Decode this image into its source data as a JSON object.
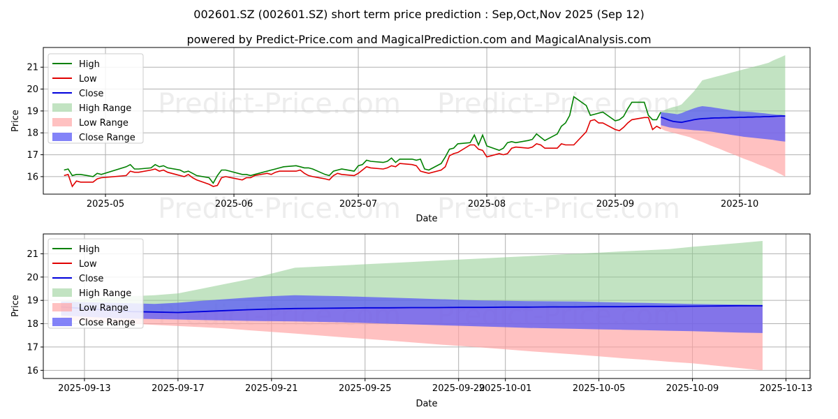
{
  "title": "002601.SZ (002601.SZ) short term price prediction : Sep,Oct,Nov 2025 (Sep 12)",
  "subtitle": "powered by Predict-Price.com and MagicalPrediction.com and MagicalAnalysis.com",
  "watermark": "Predict-Price.com",
  "colors": {
    "high": "#008000",
    "low": "#e00000",
    "close": "#0000dd",
    "high_range": "#8fcc8f",
    "low_range": "#ff9f9f",
    "close_range": "#5a5af5"
  },
  "chart_data": [
    {
      "type": "line",
      "xlabel": "Date",
      "ylabel": "Price",
      "ylim": [
        15.2,
        21.9
      ],
      "grid": true,
      "legend_position": "top-left",
      "x_ticks": [
        "2025-05",
        "2025-06",
        "2025-07",
        "2025-08",
        "2025-09",
        "2025-10"
      ],
      "y_ticks": [
        16,
        17,
        18,
        19,
        20,
        21
      ],
      "legend": [
        "High",
        "Low",
        "Close",
        "High Range",
        "Low Range",
        "Close Range"
      ],
      "history": {
        "x": [
          "2025-04-21",
          "2025-04-22",
          "2025-04-23",
          "2025-04-24",
          "2025-04-25",
          "2025-04-28",
          "2025-04-29",
          "2025-04-30",
          "2025-05-06",
          "2025-05-07",
          "2025-05-08",
          "2025-05-09",
          "2025-05-12",
          "2025-05-13",
          "2025-05-14",
          "2025-05-15",
          "2025-05-16",
          "2025-05-19",
          "2025-05-20",
          "2025-05-21",
          "2025-05-22",
          "2025-05-23",
          "2025-05-26",
          "2025-05-27",
          "2025-05-28",
          "2025-05-29",
          "2025-05-30",
          "2025-06-03",
          "2025-06-04",
          "2025-06-05",
          "2025-06-06",
          "2025-06-09",
          "2025-06-10",
          "2025-06-11",
          "2025-06-12",
          "2025-06-13",
          "2025-06-16",
          "2025-06-17",
          "2025-06-18",
          "2025-06-19",
          "2025-06-20",
          "2025-06-23",
          "2025-06-24",
          "2025-06-25",
          "2025-06-26",
          "2025-06-27",
          "2025-06-30",
          "2025-07-01",
          "2025-07-02",
          "2025-07-03",
          "2025-07-04",
          "2025-07-07",
          "2025-07-08",
          "2025-07-09",
          "2025-07-10",
          "2025-07-11",
          "2025-07-14",
          "2025-07-15",
          "2025-07-16",
          "2025-07-17",
          "2025-07-18",
          "2025-07-21",
          "2025-07-22",
          "2025-07-23",
          "2025-07-24",
          "2025-07-25",
          "2025-07-28",
          "2025-07-29",
          "2025-07-30",
          "2025-07-31",
          "2025-08-01",
          "2025-08-04",
          "2025-08-05",
          "2025-08-06",
          "2025-08-07",
          "2025-08-08",
          "2025-08-11",
          "2025-08-12",
          "2025-08-13",
          "2025-08-14",
          "2025-08-15",
          "2025-08-18",
          "2025-08-19",
          "2025-08-20",
          "2025-08-21",
          "2025-08-22",
          "2025-08-25",
          "2025-08-26",
          "2025-08-27",
          "2025-08-28",
          "2025-08-29",
          "2025-09-01",
          "2025-09-02",
          "2025-09-03",
          "2025-09-04",
          "2025-09-05",
          "2025-09-08",
          "2025-09-09",
          "2025-09-10",
          "2025-09-11",
          "2025-09-12"
        ],
        "high": [
          16.3,
          16.35,
          16.05,
          16.1,
          16.1,
          16.0,
          16.15,
          16.1,
          16.45,
          16.55,
          16.35,
          16.35,
          16.4,
          16.55,
          16.45,
          16.5,
          16.4,
          16.3,
          16.2,
          16.25,
          16.15,
          16.05,
          15.95,
          15.7,
          16.05,
          16.3,
          16.3,
          16.1,
          16.1,
          16.05,
          16.1,
          16.25,
          16.3,
          16.35,
          16.4,
          16.45,
          16.5,
          16.45,
          16.4,
          16.4,
          16.35,
          16.1,
          16.05,
          16.25,
          16.3,
          16.35,
          16.25,
          16.5,
          16.55,
          16.75,
          16.7,
          16.65,
          16.7,
          16.85,
          16.65,
          16.8,
          16.8,
          16.75,
          16.8,
          16.35,
          16.3,
          16.6,
          16.9,
          17.25,
          17.3,
          17.5,
          17.55,
          17.9,
          17.45,
          17.9,
          17.4,
          17.2,
          17.3,
          17.55,
          17.6,
          17.55,
          17.65,
          17.7,
          17.95,
          17.8,
          17.65,
          17.95,
          18.3,
          18.45,
          18.8,
          19.65,
          19.25,
          18.8,
          18.85,
          18.9,
          18.95,
          18.55,
          18.6,
          18.75,
          19.1,
          19.4,
          19.4,
          18.8,
          18.6,
          18.6,
          18.95
        ],
        "low": [
          16.05,
          16.1,
          15.55,
          15.8,
          15.75,
          15.75,
          15.9,
          15.95,
          16.05,
          16.25,
          16.2,
          16.2,
          16.3,
          16.35,
          16.25,
          16.3,
          16.2,
          16.05,
          16.0,
          16.1,
          15.95,
          15.85,
          15.65,
          15.55,
          15.6,
          15.95,
          16.0,
          15.85,
          15.95,
          15.95,
          16.05,
          16.15,
          16.1,
          16.2,
          16.25,
          16.25,
          16.25,
          16.3,
          16.15,
          16.05,
          16.0,
          15.9,
          15.85,
          16.05,
          16.15,
          16.1,
          16.05,
          16.15,
          16.3,
          16.45,
          16.4,
          16.35,
          16.4,
          16.5,
          16.45,
          16.6,
          16.55,
          16.5,
          16.25,
          16.2,
          16.15,
          16.3,
          16.45,
          16.95,
          17.05,
          17.1,
          17.45,
          17.45,
          17.25,
          17.2,
          16.9,
          17.05,
          17.0,
          17.05,
          17.3,
          17.35,
          17.3,
          17.35,
          17.5,
          17.45,
          17.3,
          17.3,
          17.5,
          17.45,
          17.45,
          17.45,
          18.05,
          18.55,
          18.6,
          18.45,
          18.45,
          18.15,
          18.1,
          18.25,
          18.45,
          18.6,
          18.7,
          18.7,
          18.15,
          18.3,
          18.2
        ]
      },
      "forecast": {
        "x": [
          "2025-09-12",
          "2025-09-13",
          "2025-09-14",
          "2025-09-15",
          "2025-09-16",
          "2025-09-17",
          "2025-09-18",
          "2025-09-19",
          "2025-09-20",
          "2025-09-21",
          "2025-09-22",
          "2025-09-23",
          "2025-09-24",
          "2025-09-25",
          "2025-09-26",
          "2025-09-27",
          "2025-09-28",
          "2025-09-29",
          "2025-09-30",
          "2025-10-01",
          "2025-10-02",
          "2025-10-03",
          "2025-10-04",
          "2025-10-05",
          "2025-10-06",
          "2025-10-07",
          "2025-10-08",
          "2025-10-09",
          "2025-10-10",
          "2025-10-11",
          "2025-10-12"
        ],
        "close": [
          18.72,
          18.65,
          18.58,
          18.52,
          18.5,
          18.48,
          18.52,
          18.56,
          18.6,
          18.63,
          18.65,
          18.66,
          18.67,
          18.68,
          18.68,
          18.69,
          18.69,
          18.7,
          18.7,
          18.71,
          18.71,
          18.72,
          18.72,
          18.73,
          18.73,
          18.74,
          18.74,
          18.75,
          18.76,
          18.77,
          18.77
        ],
        "close_upper": [
          18.95,
          18.92,
          18.9,
          18.88,
          18.85,
          18.9,
          18.98,
          19.05,
          19.12,
          19.18,
          19.22,
          19.2,
          19.18,
          19.15,
          19.12,
          19.09,
          19.06,
          19.03,
          19.0,
          18.98,
          18.97,
          18.96,
          18.95,
          18.93,
          18.91,
          18.89,
          18.87,
          18.85,
          18.83,
          18.82,
          18.8
        ],
        "close_lower": [
          18.35,
          18.3,
          18.25,
          18.22,
          18.2,
          18.18,
          18.16,
          18.14,
          18.12,
          18.11,
          18.1,
          18.08,
          18.06,
          18.03,
          18.0,
          17.97,
          17.94,
          17.91,
          17.88,
          17.85,
          17.82,
          17.8,
          17.78,
          17.76,
          17.74,
          17.72,
          17.7,
          17.68,
          17.65,
          17.62,
          17.6
        ],
        "high_upper": [
          18.95,
          19.05,
          19.12,
          19.18,
          19.22,
          19.3,
          19.5,
          19.7,
          19.9,
          20.15,
          20.4,
          20.45,
          20.5,
          20.55,
          20.6,
          20.65,
          20.7,
          20.75,
          20.8,
          20.85,
          20.9,
          20.95,
          21.0,
          21.05,
          21.1,
          21.15,
          21.2,
          21.3,
          21.38,
          21.46,
          21.55
        ],
        "low_lower": [
          18.2,
          18.1,
          18.05,
          18.0,
          17.95,
          17.9,
          17.85,
          17.8,
          17.72,
          17.65,
          17.58,
          17.5,
          17.42,
          17.35,
          17.28,
          17.2,
          17.12,
          17.05,
          16.98,
          16.9,
          16.82,
          16.75,
          16.68,
          16.6,
          16.52,
          16.45,
          16.37,
          16.3,
          16.2,
          16.1,
          16.0
        ]
      }
    },
    {
      "type": "line",
      "xlabel": "Date",
      "ylabel": "Price",
      "ylim": [
        15.65,
        21.85
      ],
      "grid": true,
      "legend_position": "top-left",
      "x_ticks": [
        "2025-09-13",
        "2025-09-17",
        "2025-09-21",
        "2025-09-25",
        "2025-09-29",
        "2025-10-01",
        "2025-10-05",
        "2025-10-09",
        "2025-10-13"
      ],
      "y_ticks": [
        16,
        17,
        18,
        19,
        20,
        21
      ],
      "legend": [
        "High",
        "Low",
        "Close",
        "High Range",
        "Low Range",
        "Close Range"
      ]
    }
  ]
}
